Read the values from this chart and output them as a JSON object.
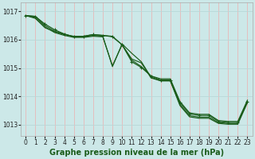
{
  "background_color": "#cce8e8",
  "grid_color_v": "#e8b8b8",
  "grid_color_h": "#b8d8d8",
  "line_color": "#1a5c1a",
  "xlabel": "Graphe pression niveau de la mer (hPa)",
  "xlabel_fontsize": 7,
  "x_ticks": [
    0,
    1,
    2,
    3,
    4,
    5,
    6,
    7,
    8,
    9,
    10,
    11,
    12,
    13,
    14,
    15,
    16,
    17,
    18,
    19,
    20,
    21,
    22,
    23
  ],
  "ylim": [
    1012.6,
    1017.3
  ],
  "xlim": [
    -0.5,
    23.5
  ],
  "yticks": [
    1013,
    1014,
    1015,
    1016,
    1017
  ],
  "s1_x": [
    0,
    1,
    2,
    3,
    4,
    5,
    6,
    7,
    8,
    9,
    10,
    11,
    12,
    13,
    14,
    15,
    16,
    17,
    18,
    19,
    20,
    21,
    22,
    23
  ],
  "s1_y": [
    1016.85,
    1016.82,
    1016.55,
    1016.35,
    1016.2,
    1016.1,
    1016.12,
    1016.18,
    1016.15,
    1016.1,
    1015.82,
    1015.22,
    1015.02,
    1014.72,
    1014.58,
    1014.58,
    1013.78,
    1013.38,
    1013.33,
    1013.33,
    1013.12,
    1013.08,
    1013.08,
    1013.82
  ],
  "s2_x": [
    0,
    1,
    2,
    3,
    4,
    5,
    6,
    7,
    8,
    9,
    10,
    11,
    12,
    13,
    14,
    15,
    16,
    17,
    18,
    19,
    20,
    21,
    22,
    23
  ],
  "s2_y": [
    1016.85,
    1016.75,
    1016.42,
    1016.28,
    1016.18,
    1016.12,
    1016.12,
    1016.18,
    1016.15,
    1016.12,
    1015.82,
    1015.28,
    1015.05,
    1014.72,
    1014.62,
    1014.62,
    1013.82,
    1013.42,
    1013.37,
    1013.37,
    1013.15,
    1013.12,
    1013.12,
    1013.87
  ],
  "s3_x": [
    0,
    1,
    2,
    3,
    4,
    5,
    6,
    7,
    8,
    9,
    10,
    11,
    12,
    13,
    14,
    15,
    16,
    17,
    18,
    19,
    20,
    21,
    22,
    23
  ],
  "s3_y": [
    1016.85,
    1016.82,
    1016.5,
    1016.3,
    1016.2,
    1016.1,
    1016.1,
    1016.15,
    1016.12,
    1015.05,
    1015.85,
    1015.52,
    1015.22,
    1014.68,
    1014.55,
    1014.55,
    1013.72,
    1013.32,
    1013.27,
    1013.27,
    1013.08,
    1013.05,
    1013.05,
    1013.82
  ],
  "s4_x": [
    0,
    1,
    2,
    3,
    4,
    5,
    6,
    7,
    8,
    9,
    10,
    11,
    12,
    13,
    14,
    15,
    16,
    17,
    18,
    19,
    20,
    21,
    22,
    23
  ],
  "s4_y": [
    1016.85,
    1016.78,
    1016.45,
    1016.25,
    1016.15,
    1016.08,
    1016.08,
    1016.12,
    1016.1,
    1015.08,
    1015.82,
    1015.32,
    1015.18,
    1014.65,
    1014.55,
    1014.55,
    1013.68,
    1013.28,
    1013.23,
    1013.23,
    1013.05,
    1013.02,
    1013.02,
    1013.78
  ]
}
